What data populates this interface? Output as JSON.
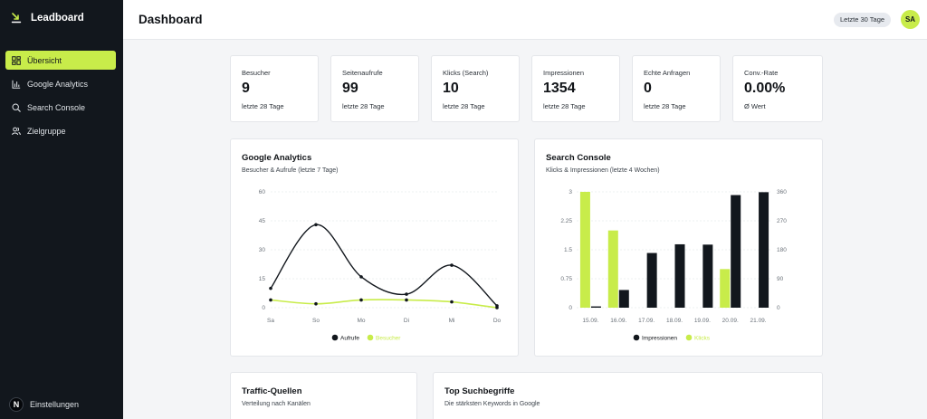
{
  "sidebar": {
    "brand": "Leadboard",
    "items": [
      {
        "label": "Übersicht",
        "icon": "grid-icon"
      },
      {
        "label": "Google Analytics",
        "icon": "bar-chart-icon"
      },
      {
        "label": "Search Console",
        "icon": "search-icon"
      },
      {
        "label": "Zielgruppe",
        "icon": "users-icon"
      }
    ],
    "settings_badge": "N",
    "settings_label": "Einstellungen"
  },
  "header": {
    "title": "Dashboard",
    "range": "Letzte 30 Tage",
    "avatar": "SA"
  },
  "stats": [
    {
      "label": "Besucher",
      "value": "9",
      "sub": "letzte 28 Tage"
    },
    {
      "label": "Seitenaufrufe",
      "value": "99",
      "sub": "letzte 28 Tage"
    },
    {
      "label": "Klicks (Search)",
      "value": "10",
      "sub": "letzte 28 Tage"
    },
    {
      "label": "Impressionen",
      "value": "1354",
      "sub": "letzte 28 Tage"
    },
    {
      "label": "Echte Anfragen",
      "value": "0",
      "sub": "letzte 28 Tage"
    },
    {
      "label": "Conv.-Rate",
      "value": "0.00%",
      "sub": "Ø Wert"
    }
  ],
  "analytics": {
    "title": "Google Analytics",
    "subtitle": "Besucher & Aufrufe (letzte 7 Tage)"
  },
  "search_console": {
    "title": "Search Console",
    "subtitle": "Klicks & Impressionen (letzte 4 Wochen)"
  },
  "traffic": {
    "title": "Traffic-Quellen",
    "subtitle": "Verteilung nach Kanälen"
  },
  "keywords": {
    "title": "Top Suchbegriffe",
    "subtitle": "Die stärksten Keywords in Google"
  },
  "colors": {
    "dark": "#12171d",
    "accent": "#c8ec4a"
  },
  "chart_data": [
    {
      "type": "line",
      "x": [
        "Sa",
        "So",
        "Mo",
        "Di",
        "Mi",
        "Do"
      ],
      "ylim": [
        0,
        60
      ],
      "yticks": [
        "60",
        "45",
        "30",
        "15",
        "0"
      ],
      "series": [
        {
          "name": "Aufrufe",
          "values": [
            10,
            43,
            16,
            7,
            22,
            1
          ]
        },
        {
          "name": "Besucher",
          "values": [
            4,
            2,
            4,
            4,
            3,
            0
          ]
        }
      ],
      "legend": "bottom-center"
    },
    {
      "type": "bar",
      "categories": [
        "15.09.",
        "16.09.",
        "17.09.",
        "18.09.",
        "19.09.",
        "20.09.",
        "21.09."
      ],
      "yleft": {
        "ylim": [
          0,
          3
        ],
        "ticks": [
          "3",
          "2.25",
          "1.5",
          "0.75",
          "0"
        ]
      },
      "yright": {
        "ylim": [
          0,
          360
        ],
        "ticks": [
          "360",
          "270",
          "180",
          "90",
          "0"
        ]
      },
      "series": [
        {
          "name": "Klicks",
          "axis": "left",
          "values": [
            3,
            2,
            0,
            0,
            0,
            1,
            0
          ]
        },
        {
          "name": "Impressionen",
          "axis": "right",
          "values": [
            4,
            55,
            170,
            197,
            196,
            350,
            359
          ]
        }
      ],
      "legend": "bottom-center"
    }
  ]
}
